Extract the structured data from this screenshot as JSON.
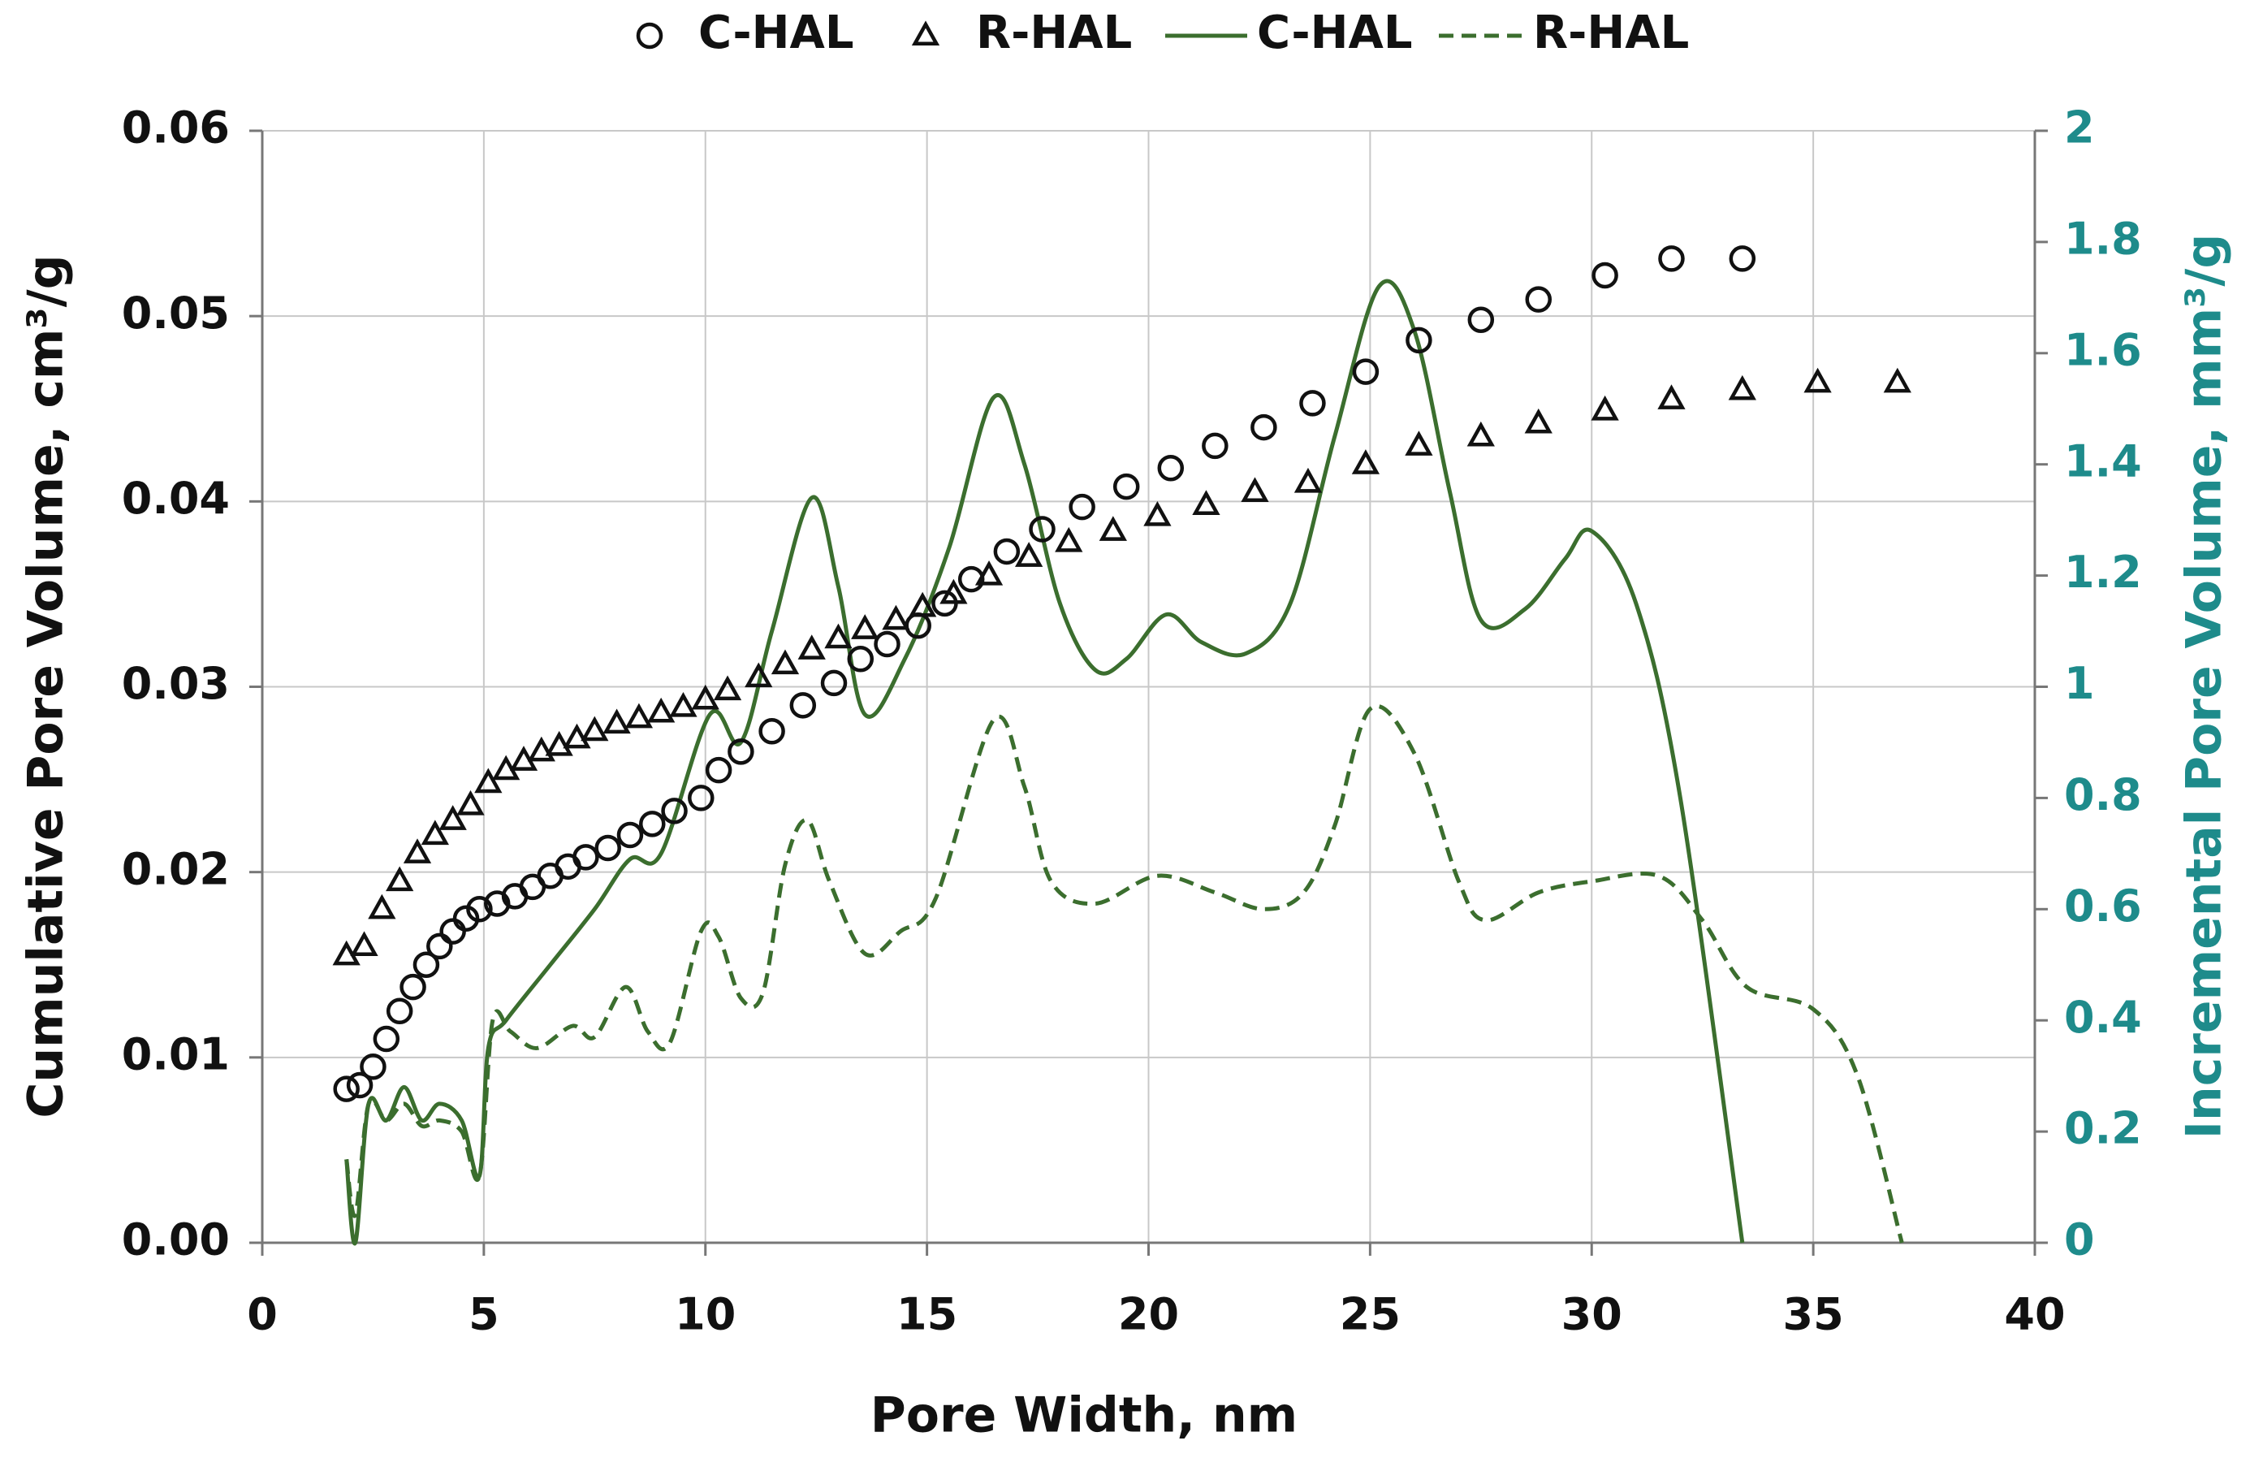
{
  "chart_data": {
    "type": "combo",
    "xlabel": "Pore Width, nm",
    "ylabel": "Cumulative Pore Volume, cm³/g",
    "y2label": "Incremental Pore Volume, mm³/g",
    "xlim": [
      0,
      40
    ],
    "xticks": [
      0,
      5,
      10,
      15,
      20,
      25,
      30,
      35,
      40
    ],
    "ylim": [
      0,
      0.06
    ],
    "yticks": [
      {
        "value": 0,
        "label": "0.00"
      },
      0.01,
      0.02,
      0.03,
      0.04,
      0.05,
      0.06
    ],
    "y2lim": [
      0,
      2
    ],
    "y2ticks": [
      0,
      0.2,
      0.4,
      0.6,
      0.8,
      1,
      1.2,
      1.4,
      1.6,
      1.8,
      2
    ],
    "grid": true,
    "legend": "top",
    "series": [
      {
        "name": "C-HAL",
        "type": "scatter",
        "marker": "circle",
        "color": "#111111",
        "axis": "y",
        "x": [
          1.9,
          2.2,
          2.5,
          2.8,
          3.1,
          3.4,
          3.7,
          4.0,
          4.3,
          4.6,
          4.9,
          5.3,
          5.7,
          6.1,
          6.5,
          6.9,
          7.3,
          7.8,
          8.3,
          8.8,
          9.3,
          9.9,
          10.3,
          10.8,
          11.5,
          12.2,
          12.9,
          13.5,
          14.1,
          14.8,
          15.4,
          16.0,
          16.8,
          17.6,
          18.5,
          19.5,
          20.5,
          21.5,
          22.6,
          23.7,
          24.9,
          26.1,
          27.5,
          28.8,
          30.3,
          31.8,
          33.4
        ],
        "values": [
          0.0083,
          0.0085,
          0.0095,
          0.011,
          0.0125,
          0.0138,
          0.015,
          0.016,
          0.0168,
          0.0175,
          0.018,
          0.0183,
          0.0187,
          0.0192,
          0.0198,
          0.0203,
          0.0208,
          0.0213,
          0.022,
          0.0226,
          0.0233,
          0.024,
          0.0255,
          0.0265,
          0.0276,
          0.029,
          0.0302,
          0.0315,
          0.0323,
          0.0333,
          0.0345,
          0.0358,
          0.0373,
          0.0385,
          0.0397,
          0.0408,
          0.0418,
          0.043,
          0.044,
          0.0453,
          0.047,
          0.0487,
          0.0498,
          0.0509,
          0.0522,
          0.0531,
          0.0531
        ]
      },
      {
        "name": "R-HAL",
        "type": "scatter",
        "marker": "triangle",
        "color": "#111111",
        "axis": "y",
        "x": [
          1.9,
          2.3,
          2.7,
          3.1,
          3.5,
          3.9,
          4.3,
          4.7,
          5.1,
          5.5,
          5.9,
          6.3,
          6.7,
          7.1,
          7.5,
          8.0,
          8.5,
          9.0,
          9.5,
          10.0,
          10.5,
          11.2,
          11.8,
          12.4,
          13.0,
          13.6,
          14.3,
          14.9,
          15.6,
          16.4,
          17.3,
          18.2,
          19.2,
          20.2,
          21.3,
          22.4,
          23.6,
          24.9,
          26.1,
          27.5,
          28.8,
          30.3,
          31.8,
          33.4,
          35.1,
          36.9
        ],
        "values": [
          0.0155,
          0.016,
          0.018,
          0.0195,
          0.021,
          0.022,
          0.0228,
          0.0236,
          0.0248,
          0.0255,
          0.026,
          0.0265,
          0.0268,
          0.0272,
          0.0276,
          0.028,
          0.0283,
          0.0286,
          0.0289,
          0.0293,
          0.0298,
          0.0305,
          0.0312,
          0.032,
          0.0326,
          0.0331,
          0.0336,
          0.0343,
          0.035,
          0.036,
          0.037,
          0.0378,
          0.0384,
          0.0392,
          0.0398,
          0.0405,
          0.041,
          0.042,
          0.043,
          0.0435,
          0.0442,
          0.0449,
          0.0455,
          0.046,
          0.0464,
          0.0464
        ]
      },
      {
        "name": "C-HAL",
        "type": "line",
        "style": "solid",
        "color": "#3b6e2e",
        "axis": "y2",
        "x": [
          1.9,
          2.1,
          2.4,
          2.8,
          3.2,
          3.6,
          4.0,
          4.5,
          4.9,
          5.1,
          5.5,
          6.5,
          7.5,
          8.3,
          9.0,
          10.1,
          10.8,
          11.5,
          12.4,
          13.0,
          13.6,
          14.5,
          15.5,
          16.5,
          17.2,
          18.0,
          18.8,
          19.5,
          20.4,
          21.2,
          22.2,
          23.2,
          24.2,
          25.2,
          26.0,
          26.8,
          27.5,
          28.5,
          29.4,
          30.0,
          31.0,
          32.0,
          33.4
        ],
        "values": [
          0.15,
          0,
          0.25,
          0.22,
          0.28,
          0.22,
          0.25,
          0.22,
          0.12,
          0.35,
          0.4,
          0.5,
          0.6,
          0.69,
          0.7,
          0.95,
          0.9,
          1.1,
          1.34,
          1.18,
          0.95,
          1.05,
          1.25,
          1.52,
          1.4,
          1.15,
          1.03,
          1.05,
          1.13,
          1.08,
          1.06,
          1.15,
          1.45,
          1.72,
          1.64,
          1.35,
          1.12,
          1.14,
          1.23,
          1.28,
          1.15,
          0.8,
          0
        ]
      },
      {
        "name": "R-HAL",
        "type": "line",
        "style": "dashed",
        "color": "#3b6e2e",
        "axis": "y2",
        "x": [
          1.9,
          2.1,
          2.4,
          2.8,
          3.2,
          3.6,
          4.0,
          4.5,
          4.9,
          5.2,
          5.6,
          6.2,
          7.0,
          7.5,
          8.2,
          8.7,
          9.2,
          9.9,
          10.3,
          10.8,
          11.3,
          11.8,
          12.3,
          12.8,
          13.6,
          14.4,
          15.2,
          16.5,
          17.2,
          17.8,
          18.8,
          20.2,
          21.5,
          22.6,
          23.5,
          24.2,
          25.0,
          26.0,
          27.0,
          27.6,
          28.8,
          30.0,
          31.5,
          32.5,
          33.5,
          35.0,
          36.0,
          37.0
        ],
        "values": [
          0.15,
          0.05,
          0.25,
          0.22,
          0.25,
          0.21,
          0.22,
          0.2,
          0.12,
          0.4,
          0.38,
          0.35,
          0.39,
          0.37,
          0.46,
          0.38,
          0.36,
          0.56,
          0.55,
          0.44,
          0.45,
          0.68,
          0.76,
          0.65,
          0.52,
          0.56,
          0.62,
          0.94,
          0.82,
          0.65,
          0.61,
          0.66,
          0.63,
          0.6,
          0.63,
          0.75,
          0.96,
          0.88,
          0.65,
          0.58,
          0.63,
          0.65,
          0.66,
          0.58,
          0.46,
          0.42,
          0.3,
          0
        ]
      }
    ]
  }
}
